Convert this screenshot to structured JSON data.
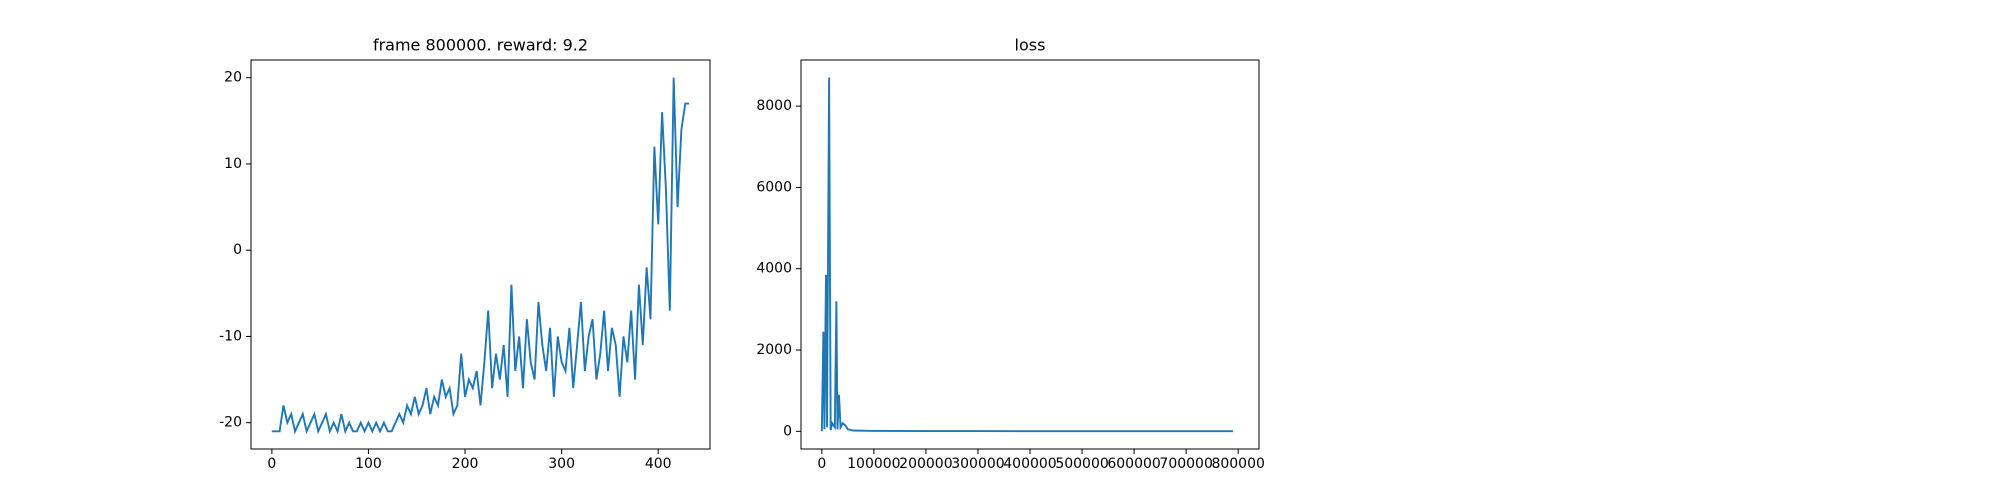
{
  "chart_data": [
    {
      "type": "line",
      "title": "frame 800000. reward: 9.2",
      "color": "#1f77b4",
      "x": [
        0,
        4,
        8,
        12,
        16,
        20,
        24,
        28,
        32,
        36,
        40,
        44,
        48,
        52,
        56,
        60,
        64,
        68,
        72,
        76,
        80,
        84,
        88,
        92,
        96,
        100,
        104,
        108,
        112,
        116,
        120,
        124,
        128,
        132,
        136,
        140,
        144,
        148,
        152,
        156,
        160,
        164,
        168,
        172,
        176,
        180,
        184,
        188,
        192,
        196,
        200,
        204,
        208,
        212,
        216,
        220,
        224,
        228,
        232,
        236,
        240,
        244,
        248,
        252,
        256,
        260,
        264,
        268,
        272,
        276,
        280,
        284,
        288,
        292,
        296,
        300,
        304,
        308,
        312,
        316,
        320,
        324,
        328,
        332,
        336,
        340,
        344,
        348,
        352,
        356,
        360,
        364,
        368,
        372,
        376,
        380,
        384,
        388,
        392,
        396,
        400,
        404,
        408,
        412,
        416,
        420,
        424,
        428,
        432
      ],
      "values": [
        -21,
        -21,
        -21,
        -18,
        -20,
        -19,
        -21,
        -20,
        -19,
        -21,
        -20,
        -19,
        -21,
        -20,
        -19,
        -21,
        -20,
        -21,
        -19,
        -21,
        -20,
        -21,
        -21,
        -20,
        -21,
        -20,
        -21,
        -20,
        -21,
        -20,
        -21,
        -21,
        -20,
        -19,
        -20,
        -18,
        -19,
        -17,
        -19,
        -18,
        -16,
        -19,
        -17,
        -18,
        -15,
        -17,
        -16,
        -19,
        -18,
        -12,
        -17,
        -15,
        -16,
        -14,
        -18,
        -13,
        -7,
        -16,
        -12,
        -15,
        -11,
        -17,
        -4,
        -14,
        -10,
        -16,
        -8,
        -13,
        -15,
        -6,
        -11,
        -14,
        -9,
        -17,
        -10,
        -13,
        -14,
        -9,
        -16,
        -11,
        -6,
        -14,
        -10,
        -8,
        -15,
        -12,
        -7,
        -14,
        -9,
        -11,
        -17,
        -10,
        -13,
        -7,
        -15,
        -4,
        -11,
        -2,
        -8,
        12,
        3,
        16,
        7,
        -7,
        20,
        5,
        14,
        17,
        17
      ],
      "xlim": [
        -21.6,
        453.6
      ],
      "ylim": [
        -23.05,
        22.05
      ],
      "xticks": [
        0,
        100,
        200,
        300,
        400
      ],
      "yticks": [
        -20,
        -10,
        0,
        10,
        20
      ]
    },
    {
      "type": "line",
      "title": "loss",
      "color": "#1f77b4",
      "x": [
        0,
        3000,
        5000,
        8000,
        10000,
        14000,
        17000,
        20000,
        25000,
        28000,
        30000,
        33000,
        36000,
        40000,
        45000,
        50000,
        60000,
        100000,
        200000,
        300000,
        400000,
        500000,
        600000,
        700000,
        790000
      ],
      "values": [
        0,
        2450,
        50,
        3850,
        100,
        8700,
        30,
        200,
        100,
        3200,
        50,
        900,
        100,
        200,
        150,
        50,
        20,
        10,
        5,
        5,
        4,
        4,
        3,
        3,
        3
      ],
      "xlim": [
        -40000,
        840000
      ],
      "ylim": [
        -435,
        9135
      ],
      "xticks": [
        0,
        100000,
        200000,
        300000,
        400000,
        500000,
        600000,
        700000,
        800000
      ],
      "yticks": [
        0,
        2000,
        4000,
        6000,
        8000
      ]
    }
  ]
}
